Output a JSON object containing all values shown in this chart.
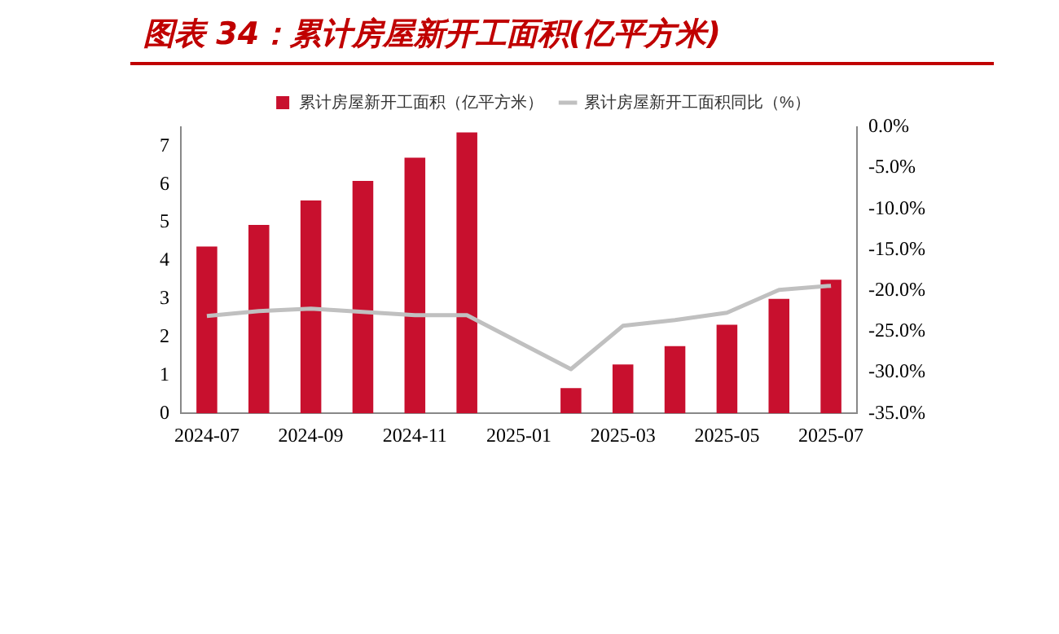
{
  "chart_data": {
    "type": "bar",
    "title": "图表 34：累计房屋新开工面积(亿平方米)",
    "categories": [
      "2024-07",
      null,
      "2024-09",
      null,
      "2024-11",
      null,
      "2025-01",
      null,
      "2025-03",
      null,
      "2025-05",
      null,
      "2025-07"
    ],
    "series": [
      {
        "name": "累计房屋新开工面积（亿平方米）",
        "color": "#c8102e",
        "values": [
          4.37,
          4.94,
          5.58,
          6.09,
          6.7,
          7.36,
          null,
          0.66,
          1.28,
          1.76,
          2.32,
          3.0,
          3.5
        ]
      },
      {
        "name": "累计房屋新开工面积同比（%）",
        "type": "line",
        "axis": "y2",
        "color": "#c0c0c0",
        "values": [
          -23.1,
          -22.5,
          -22.2,
          -22.6,
          -23.0,
          -23.0,
          null,
          -29.6,
          -24.3,
          -23.6,
          -22.7,
          -19.9,
          -19.4
        ]
      }
    ],
    "ylim": [
      0,
      7.5
    ],
    "yticks": [
      0,
      1,
      2,
      3,
      4,
      5,
      6,
      7
    ],
    "y2lim": [
      -35,
      0
    ],
    "y2ticks": [
      {
        "value": 0,
        "label": "0.0%"
      },
      {
        "value": -5,
        "label": "-5.0%"
      },
      {
        "value": -10,
        "label": "-10.0%"
      },
      {
        "value": -15,
        "label": "-15.0%"
      },
      {
        "value": -20,
        "label": "-20.0%"
      },
      {
        "value": -25,
        "label": "-25.0%"
      },
      {
        "value": -30,
        "label": "-30.0%"
      },
      {
        "value": -35,
        "label": "-35.0%"
      }
    ],
    "grid": false,
    "legend": "top",
    "marker": "none"
  }
}
